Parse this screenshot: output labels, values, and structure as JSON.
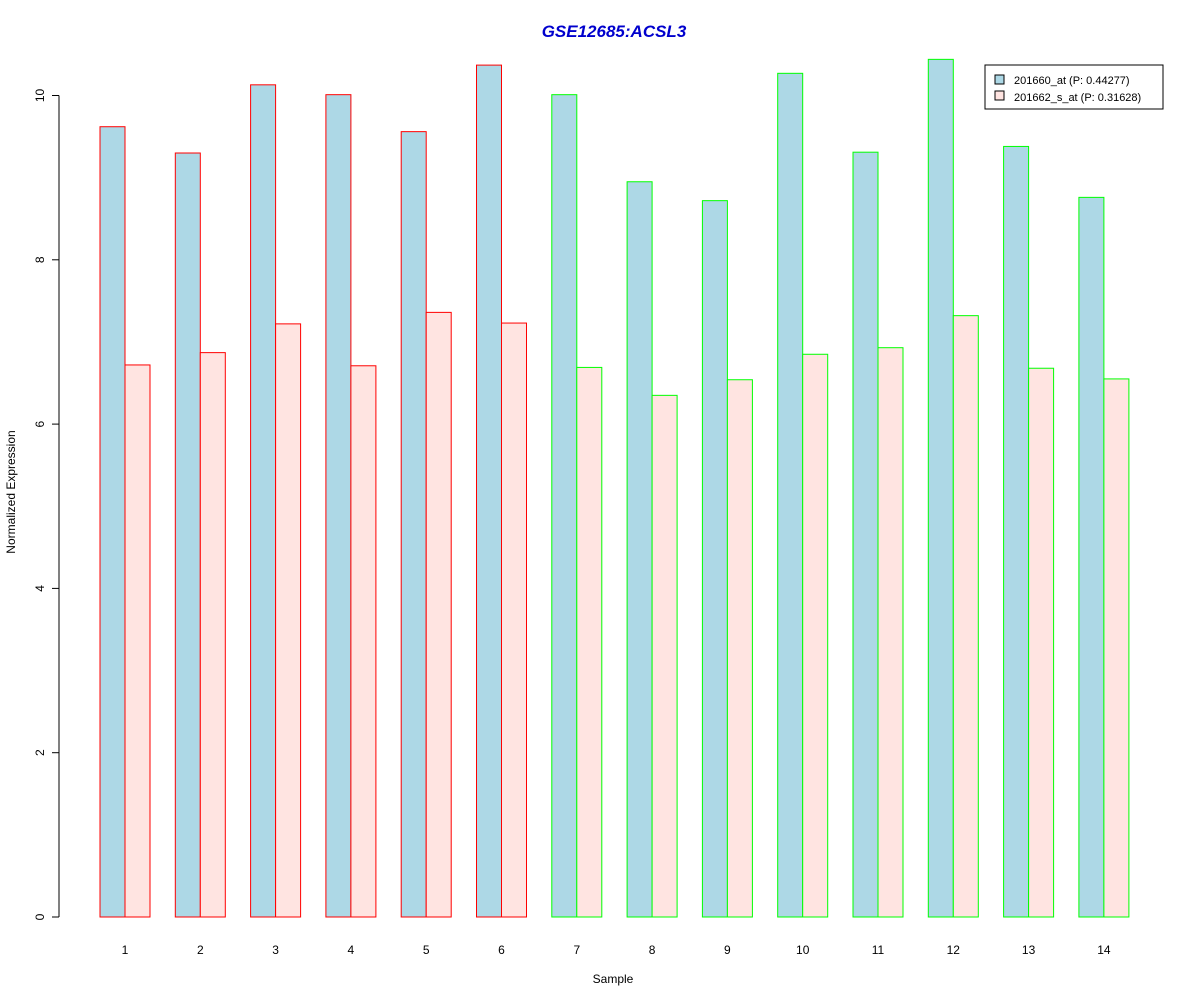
{
  "chart_data": {
    "type": "bar",
    "title": "GSE12685:ACSL3",
    "xlabel": "Sample",
    "ylabel": "Normalized Expression",
    "ylim": [
      0,
      10.5
    ],
    "y_ticks": [
      0,
      2,
      4,
      6,
      8,
      10
    ],
    "categories": [
      "1",
      "2",
      "3",
      "4",
      "5",
      "6",
      "7",
      "8",
      "9",
      "10",
      "11",
      "12",
      "13",
      "14"
    ],
    "series": [
      {
        "name": "201660_at (P: 0.44277)",
        "fill": "#add8e6",
        "values": [
          9.62,
          9.3,
          10.13,
          10.01,
          9.56,
          10.37,
          10.01,
          8.95,
          8.72,
          10.27,
          9.31,
          10.44,
          9.38,
          8.76
        ]
      },
      {
        "name": "201662_s_at (P: 0.31628)",
        "fill": "#ffe4e1",
        "values": [
          6.72,
          6.87,
          7.22,
          6.71,
          7.36,
          7.23,
          6.69,
          6.35,
          6.54,
          6.85,
          6.93,
          7.32,
          6.68,
          6.55
        ]
      }
    ],
    "group_border_colors": [
      "#ff0000",
      "#ff0000",
      "#ff0000",
      "#ff0000",
      "#ff0000",
      "#ff0000",
      "#00ff00",
      "#00ff00",
      "#00ff00",
      "#00ff00",
      "#00ff00",
      "#00ff00",
      "#00ff00",
      "#00ff00"
    ],
    "title_color": "#0000cd",
    "grid": false,
    "legend_position": "top-right"
  }
}
